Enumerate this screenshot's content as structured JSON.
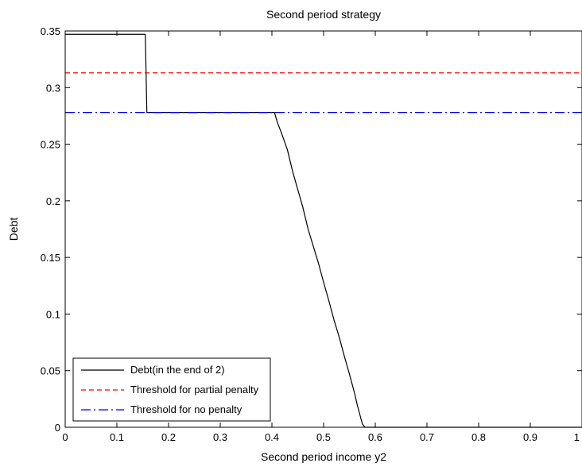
{
  "chart_data": {
    "type": "line",
    "title": "Second period strategy",
    "xlabel": "Second period income y2",
    "ylabel": "Debt",
    "xlim": [
      0,
      1
    ],
    "ylim": [
      0,
      0.35
    ],
    "xticks": [
      0,
      0.1,
      0.2,
      0.3,
      0.4,
      0.5,
      0.6,
      0.7,
      0.8,
      0.9,
      1
    ],
    "xtick_labels": [
      "0",
      "0.1",
      "0.2",
      "0.3",
      "0.4",
      "0.5",
      "0.6",
      "0.7",
      "0.8",
      "0.9",
      "1"
    ],
    "yticks": [
      0,
      0.05,
      0.1,
      0.15,
      0.2,
      0.25,
      0.3,
      0.35
    ],
    "ytick_labels": [
      "0",
      "0.05",
      "0.1",
      "0.15",
      "0.2",
      "0.25",
      "0.3",
      "0.35"
    ],
    "grid": false,
    "legend_position": "bottom-left",
    "series": [
      {
        "name": "Debt(in the end of 2)",
        "color": "#000000",
        "style": "solid",
        "x": [
          0,
          0.155,
          0.158,
          0.405,
          0.41,
          0.42,
          0.43,
          0.44,
          0.45,
          0.46,
          0.47,
          0.48,
          0.49,
          0.5,
          0.51,
          0.52,
          0.53,
          0.54,
          0.55,
          0.56,
          0.565,
          0.575,
          0.58,
          1
        ],
        "y": [
          0.347,
          0.347,
          0.278,
          0.278,
          0.27,
          0.258,
          0.245,
          0.226,
          0.21,
          0.194,
          0.175,
          0.16,
          0.145,
          0.128,
          0.112,
          0.095,
          0.08,
          0.063,
          0.047,
          0.03,
          0.02,
          0.003,
          0.0,
          0.0
        ]
      },
      {
        "name": "Threshold for partial penalty",
        "color": "#ff0000",
        "style": "dashed",
        "x": [
          0,
          1
        ],
        "y": [
          0.313,
          0.313
        ]
      },
      {
        "name": "Threshold for no penalty",
        "color": "#0000ff",
        "style": "dashdot",
        "x": [
          0,
          1
        ],
        "y": [
          0.278,
          0.278
        ]
      }
    ]
  }
}
